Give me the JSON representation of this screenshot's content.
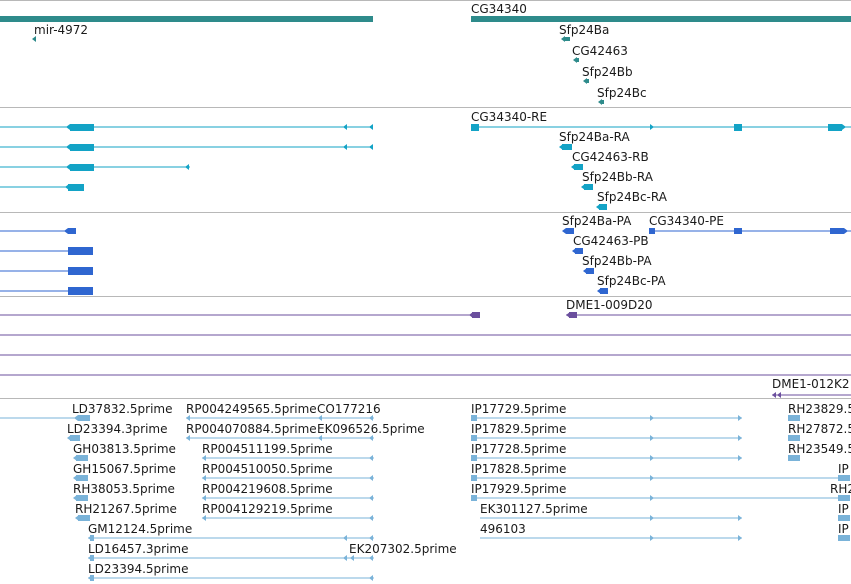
{
  "colors": {
    "gene": "#2e8b8b",
    "transcript": "#13a3c6",
    "cds": "#2f66d0",
    "clone": "#6b4f9e",
    "est": "#7ab3d9",
    "separator": "#b8b8b8",
    "text": "#1a1a1a"
  },
  "tracks": {
    "genes": {
      "labels": [
        "mir-4972",
        "CG34340",
        "Sfp24Ba",
        "CG42463",
        "Sfp24Bb",
        "Sfp24Bc"
      ]
    },
    "transcripts": {
      "labels": [
        "CG34340-RE",
        "Sfp24Ba-RA",
        "CG42463-RB",
        "Sfp24Bb-RA",
        "Sfp24Bc-RA"
      ]
    },
    "proteins": {
      "labels": [
        "Sfp24Ba-PA",
        "CG34340-PE",
        "CG42463-PB",
        "Sfp24Bb-PA",
        "Sfp24Bc-PA"
      ]
    },
    "clones": {
      "labels": [
        "DME1-009D20",
        "DME1-012K2"
      ]
    },
    "ests": {
      "labels": [
        "LD37832.5prime",
        "RP004249565.5prime",
        "CO177216",
        "IP17729.5prime",
        "RH23829.5",
        "LD23394.3prime",
        "RP004070884.5prime",
        "EK096526.5prime",
        "IP17829.5prime",
        "RH27872.5",
        "GH03813.5prime",
        "RP004511199.5prime",
        "IP17728.5prime",
        "RH23549.5",
        "GH15067.5prime",
        "RP004510050.5prime",
        "IP17828.5prime",
        "IP",
        "RH38053.5prime",
        "RP004219608.5prime",
        "IP17929.5prime",
        "RH2",
        "RH21267.5prime",
        "RP004129219.5prime",
        "EK301127.5prime",
        "IP",
        "GM12124.5prime",
        "496103",
        "IP",
        "LD16457.3prime",
        "EK207302.5prime",
        "LD23394.5prime"
      ]
    }
  }
}
